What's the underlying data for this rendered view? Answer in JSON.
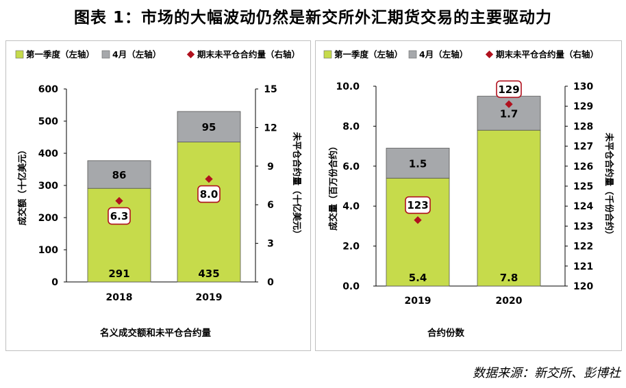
{
  "title": "图表 1：市场的大幅波动仍然是新交所外汇期货交易的主要驱动力",
  "source": "数据来源：新交所、彭博社",
  "colors": {
    "green": "#c6db4b",
    "gray": "#a6a8ab",
    "marker": "#b0111e",
    "label_border": "#b0111e"
  },
  "chart_data": [
    {
      "type": "bar",
      "stacked": true,
      "legend": [
        "第一季度（左轴）",
        "4月（左轴）",
        "期末未平仓合约量（右轴）"
      ],
      "legend_position": "top",
      "categories": [
        "2018",
        "2019"
      ],
      "series": [
        {
          "name": "第一季度（左轴）",
          "values": [
            291,
            435
          ],
          "labels": [
            "291",
            "435"
          ]
        },
        {
          "name": "4月（左轴）",
          "values": [
            86,
            95
          ],
          "labels": [
            "86",
            "95"
          ]
        },
        {
          "name": "期末未平仓合约量（右轴）",
          "axis": "right",
          "values": [
            6.3,
            8.0
          ],
          "labels": [
            "6.3",
            "8.0"
          ]
        }
      ],
      "ylabel": "成交额（十亿美元）",
      "y2label": "未平仓合约量（十亿美元）",
      "xlabel": "名义成交额和未平仓合约量",
      "ylim": [
        0,
        600
      ],
      "yticks": [
        "0",
        "100",
        "200",
        "300",
        "400",
        "500",
        "600"
      ],
      "y2lim": [
        0,
        15
      ],
      "y2ticks": [
        "0",
        "3",
        "6",
        "9",
        "12",
        "15"
      ]
    },
    {
      "type": "bar",
      "stacked": true,
      "legend": [
        "第一季度（左轴）",
        "4月（左轴）",
        "期末未平仓合约量（右轴）"
      ],
      "legend_position": "top",
      "categories": [
        "2019",
        "2020"
      ],
      "series": [
        {
          "name": "第一季度（左轴）",
          "values": [
            5.4,
            7.8
          ],
          "labels": [
            "5.4",
            "7.8"
          ]
        },
        {
          "name": "4月（左轴）",
          "values": [
            1.5,
            1.7
          ],
          "labels": [
            "1.5",
            "1.7"
          ]
        },
        {
          "name": "期末未平仓合约量（右轴）",
          "axis": "right",
          "values": [
            123.3,
            129.1
          ],
          "labels": [
            "123",
            "129"
          ]
        }
      ],
      "ylabel": "成交量（百万份合约）",
      "y2label": "未平仓合约量（千份合约）",
      "xlabel": "合约份数",
      "ylim": [
        0,
        10
      ],
      "yticks": [
        "0.0",
        "2.0",
        "4.0",
        "6.0",
        "8.0",
        "10.0"
      ],
      "y2lim": [
        120,
        130
      ],
      "y2ticks": [
        "120",
        "121",
        "122",
        "123",
        "124",
        "125",
        "126",
        "127",
        "128",
        "129",
        "130"
      ]
    }
  ]
}
